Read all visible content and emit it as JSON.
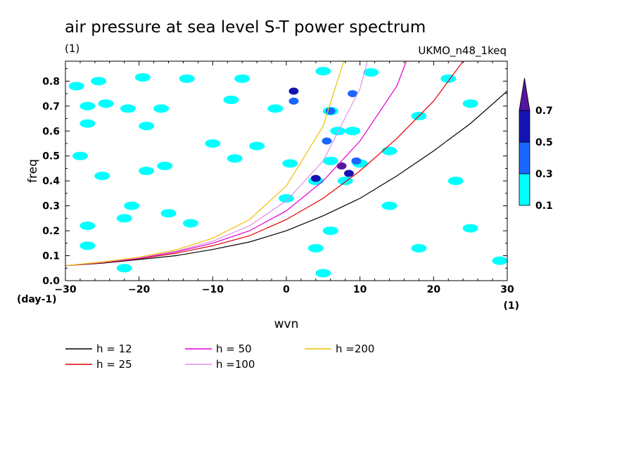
{
  "chart_data": {
    "type": "line",
    "title": "air pressure at sea level S-T power spectrum",
    "units_label": "(1)",
    "dataset_label": "UKMO_n48_1keq",
    "xlabel": "wvn",
    "ylabel": "freq",
    "x_units": "(1)",
    "y_units": "(day-1)",
    "xlim": [
      -30,
      30
    ],
    "ylim": [
      0,
      0.88
    ],
    "x_ticks": [
      -30,
      -20,
      -10,
      0,
      10,
      20,
      30
    ],
    "x_tick_labels": [
      "−30",
      "−20",
      "−10",
      "0",
      "10",
      "20",
      "30"
    ],
    "y_ticks": [
      0,
      0.1,
      0.2,
      0.3,
      0.4,
      0.5,
      0.6,
      0.7,
      0.8
    ],
    "y_tick_labels": [
      "0.0",
      "0.1",
      "0.2",
      "0.3",
      "0.4",
      "0.5",
      "0.6",
      "0.7",
      "0.8"
    ],
    "grid": false,
    "legend_placement": "bottom",
    "series": [
      {
        "name": "h = 12",
        "color": "#000000",
        "x": [
          -30,
          -25,
          -20,
          -15,
          -10,
          -5,
          0,
          5,
          10,
          15,
          20,
          25,
          30
        ],
        "y": [
          0.06,
          0.07,
          0.085,
          0.1,
          0.125,
          0.155,
          0.2,
          0.26,
          0.33,
          0.42,
          0.52,
          0.63,
          0.76
        ]
      },
      {
        "name": "h = 25",
        "color": "#e00000",
        "x": [
          -30,
          -25,
          -20,
          -15,
          -10,
          -5,
          0,
          5,
          10,
          15,
          20,
          24
        ],
        "y": [
          0.06,
          0.072,
          0.088,
          0.11,
          0.14,
          0.18,
          0.245,
          0.33,
          0.44,
          0.57,
          0.72,
          0.88
        ]
      },
      {
        "name": "h = 50",
        "color": "#e000d0",
        "x": [
          -30,
          -25,
          -20,
          -15,
          -10,
          -5,
          0,
          5,
          10,
          15,
          16.3
        ],
        "y": [
          0.06,
          0.073,
          0.09,
          0.115,
          0.15,
          0.2,
          0.28,
          0.4,
          0.56,
          0.78,
          0.88
        ]
      },
      {
        "name": "h =100",
        "color": "#e090e8",
        "x": [
          -30,
          -25,
          -20,
          -15,
          -10,
          -5,
          0,
          5,
          10,
          11
        ],
        "y": [
          0.06,
          0.074,
          0.092,
          0.118,
          0.158,
          0.22,
          0.32,
          0.48,
          0.77,
          0.88
        ]
      },
      {
        "name": "h =200",
        "color": "#f0c000",
        "x": [
          -30,
          -25,
          -20,
          -15,
          -10,
          -5,
          0,
          5,
          7.8
        ],
        "y": [
          0.06,
          0.075,
          0.094,
          0.123,
          0.17,
          0.245,
          0.38,
          0.62,
          0.88
        ]
      }
    ],
    "colorbar": {
      "levels": [
        0.1,
        0.3,
        0.5,
        0.7
      ],
      "level_labels": [
        "0.1",
        "0.3",
        "0.5",
        "0.7"
      ],
      "colors": [
        "#00ffff",
        "#1a66ff",
        "#1414b4",
        "#55169e"
      ]
    },
    "contour_blobs": [
      {
        "x": -28.5,
        "y": 0.78,
        "level": 0.1
      },
      {
        "x": -25.5,
        "y": 0.8,
        "level": 0.1
      },
      {
        "x": -19.5,
        "y": 0.815,
        "level": 0.1
      },
      {
        "x": -13.5,
        "y": 0.81,
        "level": 0.1
      },
      {
        "x": -6,
        "y": 0.81,
        "level": 0.1
      },
      {
        "x": 5,
        "y": 0.84,
        "level": 0.1
      },
      {
        "x": 11.5,
        "y": 0.835,
        "level": 0.1
      },
      {
        "x": 22,
        "y": 0.81,
        "level": 0.1
      },
      {
        "x": -27,
        "y": 0.7,
        "level": 0.1
      },
      {
        "x": -24.5,
        "y": 0.71,
        "level": 0.1
      },
      {
        "x": -21.5,
        "y": 0.69,
        "level": 0.1
      },
      {
        "x": -17,
        "y": 0.69,
        "level": 0.1
      },
      {
        "x": -7.5,
        "y": 0.725,
        "level": 0.1
      },
      {
        "x": -1.5,
        "y": 0.69,
        "level": 0.1
      },
      {
        "x": 6,
        "y": 0.68,
        "level": 0.1
      },
      {
        "x": 18,
        "y": 0.66,
        "level": 0.1
      },
      {
        "x": 25,
        "y": 0.71,
        "level": 0.1
      },
      {
        "x": -27,
        "y": 0.63,
        "level": 0.1
      },
      {
        "x": -19,
        "y": 0.62,
        "level": 0.1
      },
      {
        "x": 7,
        "y": 0.6,
        "level": 0.1
      },
      {
        "x": 9,
        "y": 0.6,
        "level": 0.1
      },
      {
        "x": -10,
        "y": 0.55,
        "level": 0.1
      },
      {
        "x": -4,
        "y": 0.54,
        "level": 0.1
      },
      {
        "x": 14,
        "y": 0.52,
        "level": 0.1
      },
      {
        "x": -28,
        "y": 0.5,
        "level": 0.1
      },
      {
        "x": -16.5,
        "y": 0.46,
        "level": 0.1
      },
      {
        "x": -7,
        "y": 0.49,
        "level": 0.1
      },
      {
        "x": 0.5,
        "y": 0.47,
        "level": 0.1
      },
      {
        "x": 6,
        "y": 0.48,
        "level": 0.1
      },
      {
        "x": 10,
        "y": 0.47,
        "level": 0.1
      },
      {
        "x": -25,
        "y": 0.42,
        "level": 0.1
      },
      {
        "x": -19,
        "y": 0.44,
        "level": 0.1
      },
      {
        "x": 4,
        "y": 0.4,
        "level": 0.1
      },
      {
        "x": 8,
        "y": 0.4,
        "level": 0.1
      },
      {
        "x": 23,
        "y": 0.4,
        "level": 0.1
      },
      {
        "x": -21,
        "y": 0.3,
        "level": 0.1
      },
      {
        "x": -16,
        "y": 0.27,
        "level": 0.1
      },
      {
        "x": 0,
        "y": 0.33,
        "level": 0.1
      },
      {
        "x": 14,
        "y": 0.3,
        "level": 0.1
      },
      {
        "x": -27,
        "y": 0.22,
        "level": 0.1
      },
      {
        "x": -22,
        "y": 0.25,
        "level": 0.1
      },
      {
        "x": -13,
        "y": 0.23,
        "level": 0.1
      },
      {
        "x": 6,
        "y": 0.2,
        "level": 0.1
      },
      {
        "x": 25,
        "y": 0.21,
        "level": 0.1
      },
      {
        "x": -27,
        "y": 0.14,
        "level": 0.1
      },
      {
        "x": 4,
        "y": 0.13,
        "level": 0.1
      },
      {
        "x": 18,
        "y": 0.13,
        "level": 0.1
      },
      {
        "x": 29,
        "y": 0.08,
        "level": 0.1
      },
      {
        "x": -22,
        "y": 0.05,
        "level": 0.1
      },
      {
        "x": 5,
        "y": 0.03,
        "level": 0.1
      },
      {
        "x": 1,
        "y": 0.76,
        "level": 0.5
      },
      {
        "x": 1,
        "y": 0.72,
        "level": 0.3
      },
      {
        "x": 5.5,
        "y": 0.56,
        "level": 0.3
      },
      {
        "x": 6,
        "y": 0.68,
        "level": 0.3
      },
      {
        "x": 9,
        "y": 0.75,
        "level": 0.3
      },
      {
        "x": 4,
        "y": 0.41,
        "level": 0.5
      },
      {
        "x": 7.5,
        "y": 0.46,
        "level": 0.7
      },
      {
        "x": 8.5,
        "y": 0.43,
        "level": 0.5
      },
      {
        "x": 9.5,
        "y": 0.48,
        "level": 0.3
      }
    ]
  },
  "legend_entries": [
    {
      "label": "h = 12",
      "color": "#000000"
    },
    {
      "label": "h = 25",
      "color": "#e00000"
    },
    {
      "label": "h = 50",
      "color": "#e000d0"
    },
    {
      "label": "h =100",
      "color": "#e090e8"
    },
    {
      "label": "h =200",
      "color": "#f0c000"
    }
  ]
}
